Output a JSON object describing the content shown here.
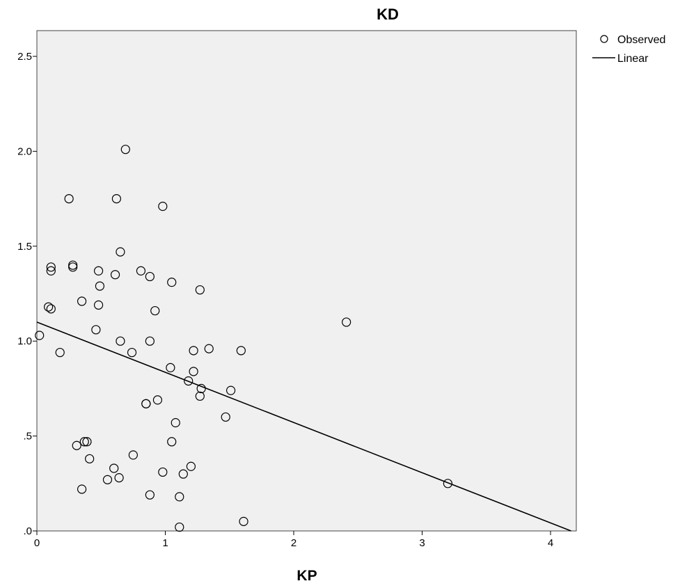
{
  "chart_data": {
    "type": "scatter",
    "title": "KD",
    "xlabel": "KP",
    "ylabel": "",
    "xlim": [
      0,
      4.2
    ],
    "ylim": [
      0,
      2.65
    ],
    "x_ticks": [
      {
        "value": 0,
        "label": "0"
      },
      {
        "value": 1,
        "label": "1"
      },
      {
        "value": 2,
        "label": "2"
      },
      {
        "value": 3,
        "label": "3"
      },
      {
        "value": 4,
        "label": "4"
      }
    ],
    "y_ticks": [
      {
        "value": 0,
        "label": ".0"
      },
      {
        "value": 0.5,
        "label": ".5"
      },
      {
        "value": 1.0,
        "label": "1.0"
      },
      {
        "value": 1.5,
        "label": "1.5"
      },
      {
        "value": 2.0,
        "label": "2.0"
      },
      {
        "value": 2.5,
        "label": "2.5"
      }
    ],
    "grid": false,
    "legend_position": "top-right",
    "legend": [
      {
        "label": "Observed",
        "marker": "circle"
      },
      {
        "label": "Linear",
        "marker": "line"
      }
    ],
    "series": [
      {
        "name": "Observed",
        "kind": "points",
        "x": [
          0.02,
          0.09,
          0.11,
          0.11,
          0.11,
          0.18,
          0.25,
          0.28,
          0.28,
          0.31,
          0.35,
          0.35,
          0.37,
          0.39,
          0.41,
          0.46,
          0.48,
          0.48,
          0.49,
          0.55,
          0.6,
          0.61,
          0.62,
          0.64,
          0.65,
          0.65,
          0.69,
          0.74,
          0.75,
          0.81,
          0.85,
          0.85,
          0.88,
          0.88,
          0.88,
          0.92,
          0.94,
          0.98,
          0.98,
          1.04,
          1.05,
          1.05,
          1.08,
          1.11,
          1.11,
          1.14,
          1.18,
          1.2,
          1.22,
          1.22,
          1.27,
          1.27,
          1.28,
          1.34,
          1.47,
          1.51,
          1.59,
          1.61,
          2.41,
          3.2
        ],
        "y": [
          1.03,
          1.18,
          1.37,
          1.39,
          1.17,
          0.94,
          1.75,
          1.39,
          1.4,
          0.45,
          0.22,
          1.21,
          0.47,
          0.47,
          0.38,
          1.06,
          1.19,
          1.37,
          1.29,
          0.27,
          0.33,
          1.35,
          1.75,
          0.28,
          1.47,
          1.0,
          2.01,
          0.94,
          0.4,
          1.37,
          0.67,
          0.67,
          1.34,
          1.0,
          0.19,
          1.16,
          0.69,
          1.71,
          0.31,
          0.86,
          0.47,
          1.31,
          0.57,
          0.18,
          0.02,
          0.3,
          0.79,
          0.34,
          0.95,
          0.84,
          0.71,
          1.27,
          0.75,
          0.96,
          0.6,
          0.74,
          0.95,
          0.05,
          1.1,
          0.25
        ]
      },
      {
        "name": "Linear",
        "kind": "line",
        "x": [
          0,
          4.16
        ],
        "y": [
          1.1,
          0.0
        ]
      }
    ]
  }
}
